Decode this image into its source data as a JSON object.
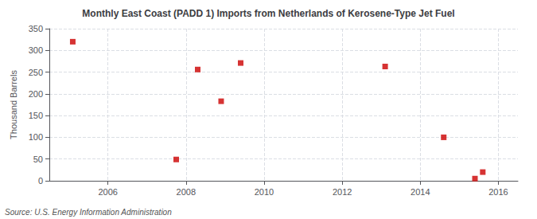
{
  "chart_data": {
    "type": "scatter",
    "title": "Monthly East Coast (PADD 1) Imports from Netherlands of Kerosene-Type Jet Fuel",
    "ylabel": "Thousand Barrels",
    "annotations": [
      "Source: U.S. Energy Information Administration"
    ],
    "x": [
      2005.1,
      2007.75,
      2008.3,
      2008.9,
      2009.4,
      2013.1,
      2014.6,
      2015.4,
      2015.6
    ],
    "values": [
      320,
      49,
      256,
      183,
      271,
      263,
      100,
      5,
      20
    ],
    "color": "#cc0000",
    "marker": "square",
    "xlim": [
      2004.5,
      2016.5
    ],
    "xticks": [
      2006,
      2008,
      2010,
      2012,
      2014,
      2016
    ],
    "ylim": [
      0,
      350
    ],
    "yticks": [
      0,
      50,
      100,
      150,
      200,
      250,
      300,
      350
    ],
    "grid": true
  }
}
